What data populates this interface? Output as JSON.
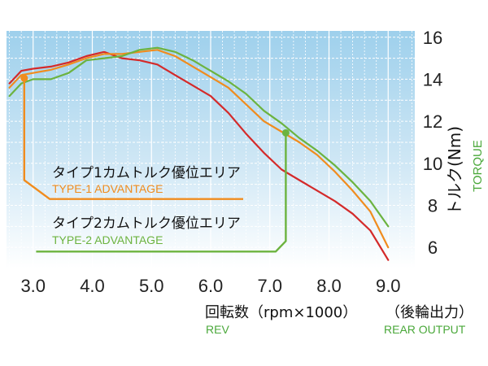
{
  "chart_data": {
    "type": "line",
    "title": "",
    "xlabel": "回転数（rpm×1000）",
    "xlabel_en": "REV",
    "ylabel": "トルク(Nm)",
    "ylabel_en": "TORQUE",
    "output_label": "（後輪出力）",
    "output_label_en": "REAR OUTPUT",
    "xlim": [
      2.55,
      9.45
    ],
    "ylim": [
      5,
      16.3
    ],
    "x_ticks": [
      "3.0",
      "4.0",
      "5.0",
      "6.0",
      "7.0",
      "8.0",
      "9.0"
    ],
    "y_ticks": [
      "6",
      "8",
      "10",
      "12",
      "14",
      "16"
    ],
    "grid": true,
    "series": [
      {
        "color": "#d42a2a",
        "x": [
          2.6,
          2.8,
          3.0,
          3.3,
          3.6,
          3.9,
          4.2,
          4.5,
          4.8,
          5.1,
          5.4,
          5.7,
          6.0,
          6.3,
          6.6,
          6.9,
          7.2,
          7.5,
          7.8,
          8.1,
          8.4,
          8.7,
          9.0
        ],
        "y": [
          13.8,
          14.4,
          14.5,
          14.6,
          14.8,
          15.1,
          15.3,
          15.0,
          14.9,
          14.7,
          14.2,
          13.7,
          13.2,
          12.4,
          11.4,
          10.5,
          9.7,
          9.2,
          8.7,
          8.2,
          7.6,
          6.8,
          5.4
        ]
      },
      {
        "color": "#f08c1e",
        "x": [
          2.6,
          2.8,
          3.0,
          3.3,
          3.6,
          3.9,
          4.2,
          4.5,
          4.8,
          5.1,
          5.4,
          5.7,
          6.0,
          6.3,
          6.6,
          6.9,
          7.2,
          7.5,
          7.8,
          8.1,
          8.4,
          8.7,
          9.0
        ],
        "y": [
          13.6,
          14.2,
          14.3,
          14.45,
          14.7,
          15.0,
          15.2,
          15.2,
          15.3,
          15.4,
          15.1,
          14.6,
          14.1,
          13.6,
          12.8,
          12.0,
          11.5,
          11.0,
          10.4,
          9.6,
          8.7,
          7.7,
          6.0
        ]
      },
      {
        "color": "#6cb33f",
        "x": [
          2.6,
          2.8,
          3.0,
          3.3,
          3.6,
          3.9,
          4.2,
          4.5,
          4.8,
          5.1,
          5.4,
          5.7,
          6.0,
          6.3,
          6.6,
          6.9,
          7.2,
          7.5,
          7.8,
          8.1,
          8.4,
          8.7,
          9.0
        ],
        "y": [
          13.2,
          13.8,
          14.0,
          14.0,
          14.3,
          14.9,
          15.0,
          15.1,
          15.4,
          15.5,
          15.3,
          14.9,
          14.4,
          13.9,
          13.3,
          12.5,
          11.9,
          11.2,
          10.6,
          9.9,
          9.1,
          8.2,
          7.0
        ]
      }
    ],
    "annotations": [
      {
        "label": "タイプ1カムトルク優位エリア",
        "label_en": "TYPE-1 ADVANTAGE",
        "color": "#f08c1e",
        "marker": [
          2.85,
          14.05
        ],
        "connector": [
          [
            2.85,
            14.05
          ],
          [
            2.85,
            9.2
          ],
          [
            3.28,
            8.3
          ],
          [
            6.55,
            8.3
          ]
        ]
      },
      {
        "label": "タイプ2カムトルク優位エリア",
        "label_en": "TYPE-2 ADVANTAGE",
        "color": "#6cb33f",
        "marker": [
          7.27,
          11.45
        ],
        "connector": [
          [
            7.27,
            11.45
          ],
          [
            7.27,
            6.3
          ],
          [
            7.1,
            5.8
          ],
          [
            3.05,
            5.8
          ]
        ]
      }
    ]
  }
}
